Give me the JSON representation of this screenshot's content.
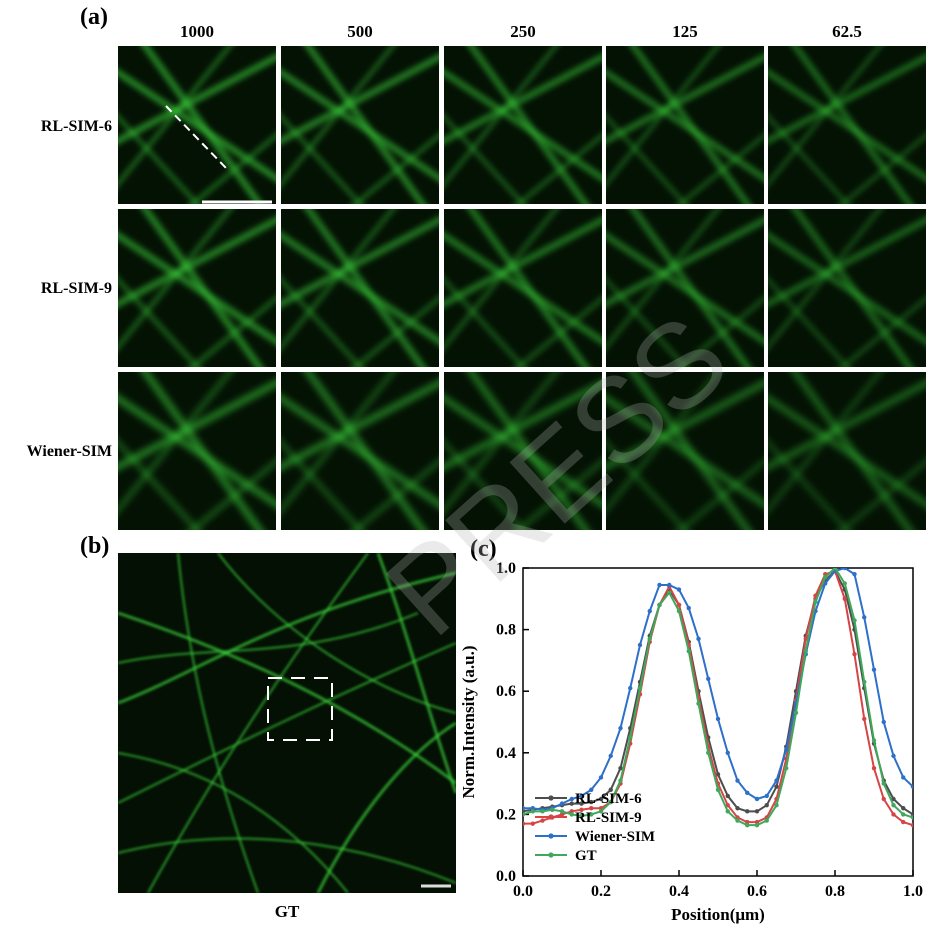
{
  "panels": {
    "a": "(a)",
    "b": "(b)",
    "c": "(c)"
  },
  "columns": [
    "1000",
    "500",
    "250",
    "125",
    "62.5"
  ],
  "rows": [
    "RL-SIM-6",
    "RL-SIM-9",
    "Wiener-SIM"
  ],
  "gt_label": "GT",
  "watermark": "PRESS",
  "image_colors": {
    "filament": "#3bd23b",
    "background": "#041204"
  },
  "chart_data": {
    "type": "line",
    "title": "",
    "xlabel": "Position(μm)",
    "ylabel": "Norm.Intensity (a.u.)",
    "xlim": [
      0.0,
      1.0
    ],
    "ylim": [
      0.0,
      1.0
    ],
    "xticks": [
      "0.0",
      "0.2",
      "0.4",
      "0.6",
      "0.8",
      "1.0"
    ],
    "yticks": [
      "0.0",
      "0.2",
      "0.4",
      "0.6",
      "0.8",
      "1.0"
    ],
    "legend_position": "bottom-left",
    "x": [
      0.0,
      0.025,
      0.05,
      0.075,
      0.1,
      0.125,
      0.15,
      0.175,
      0.2,
      0.225,
      0.25,
      0.275,
      0.3,
      0.325,
      0.35,
      0.375,
      0.4,
      0.425,
      0.45,
      0.475,
      0.5,
      0.525,
      0.55,
      0.575,
      0.6,
      0.625,
      0.65,
      0.675,
      0.7,
      0.725,
      0.75,
      0.775,
      0.8,
      0.825,
      0.85,
      0.875,
      0.9,
      0.925,
      0.95,
      0.975,
      1.0
    ],
    "series": [
      {
        "name": "RL-SIM-6",
        "color": "#4d4d4d",
        "values": [
          0.21,
          0.215,
          0.22,
          0.225,
          0.23,
          0.235,
          0.235,
          0.24,
          0.25,
          0.28,
          0.35,
          0.48,
          0.63,
          0.78,
          0.88,
          0.93,
          0.88,
          0.76,
          0.6,
          0.45,
          0.33,
          0.26,
          0.22,
          0.21,
          0.21,
          0.23,
          0.29,
          0.42,
          0.6,
          0.78,
          0.9,
          0.96,
          0.99,
          0.93,
          0.8,
          0.61,
          0.43,
          0.31,
          0.25,
          0.22,
          0.2
        ]
      },
      {
        "name": "RL-SIM-9",
        "color": "#d64545",
        "values": [
          0.17,
          0.17,
          0.18,
          0.19,
          0.2,
          0.21,
          0.215,
          0.22,
          0.22,
          0.24,
          0.3,
          0.43,
          0.59,
          0.76,
          0.88,
          0.94,
          0.88,
          0.75,
          0.58,
          0.42,
          0.3,
          0.23,
          0.19,
          0.175,
          0.175,
          0.19,
          0.25,
          0.38,
          0.57,
          0.77,
          0.91,
          0.98,
          0.99,
          0.9,
          0.72,
          0.51,
          0.35,
          0.25,
          0.2,
          0.175,
          0.165
        ]
      },
      {
        "name": "Wiener-SIM",
        "color": "#2e6fc9",
        "values": [
          0.22,
          0.22,
          0.215,
          0.22,
          0.235,
          0.25,
          0.26,
          0.28,
          0.32,
          0.39,
          0.48,
          0.61,
          0.75,
          0.86,
          0.945,
          0.945,
          0.93,
          0.87,
          0.77,
          0.64,
          0.51,
          0.4,
          0.31,
          0.27,
          0.25,
          0.26,
          0.31,
          0.41,
          0.56,
          0.72,
          0.86,
          0.95,
          0.99,
          1.0,
          0.98,
          0.84,
          0.67,
          0.5,
          0.39,
          0.32,
          0.29
        ]
      },
      {
        "name": "GT",
        "color": "#3fa85b",
        "values": [
          0.2,
          0.21,
          0.21,
          0.215,
          0.21,
          0.2,
          0.195,
          0.2,
          0.21,
          0.24,
          0.31,
          0.45,
          0.61,
          0.77,
          0.88,
          0.92,
          0.86,
          0.73,
          0.56,
          0.4,
          0.28,
          0.21,
          0.18,
          0.165,
          0.165,
          0.18,
          0.23,
          0.35,
          0.53,
          0.73,
          0.89,
          0.97,
          1.0,
          0.95,
          0.83,
          0.63,
          0.44,
          0.3,
          0.23,
          0.2,
          0.19
        ]
      }
    ]
  }
}
